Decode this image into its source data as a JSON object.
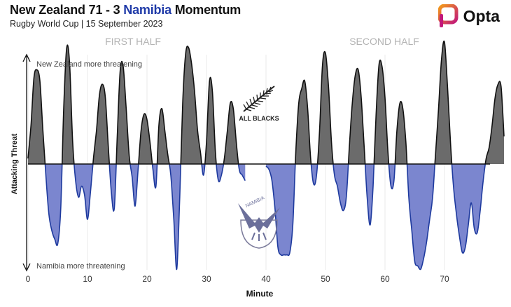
{
  "header": {
    "title_team1": "New Zealand 71 - 3",
    "title_team2": "Namibia",
    "title_suffix": "Momentum",
    "subtitle": "Rugby World Cup | 15 September 2023",
    "brand": "Opta"
  },
  "colors": {
    "new_zealand": "#6b6b6b",
    "namibia": "#7b86cf",
    "namibia_line": "#1e3a9e",
    "title_namibia": "#1f3aa8",
    "opta_orange": "#f29a1b",
    "opta_magenta": "#c2187a"
  },
  "icons": {
    "nz_logo": "all-blacks-fern-icon",
    "namibia_logo": "namibia-eagle-icon",
    "brand_logo": "opta-icon"
  },
  "chart_data": {
    "type": "area",
    "title": "New Zealand 71 - 3 Namibia Momentum",
    "subtitle": "Rugby World Cup | 15 September 2023",
    "xlabel": "Minute",
    "ylabel": "Attacking Threat",
    "top_annotation": "New Zealand more threatening",
    "bottom_annotation": "Namibia more threatening",
    "first_half_label": "FIRST HALF",
    "second_half_label": "SECOND HALF",
    "nz_badge_text": "ALL BLACKS",
    "namibia_badge_text": "NAMIBIA",
    "x_ticks": [
      0,
      10,
      20,
      30,
      40,
      50,
      60,
      70
    ],
    "xlim": [
      0,
      80
    ],
    "ylim": [
      -1,
      1
    ],
    "grid": true,
    "series": [
      {
        "name": "First Half",
        "x": [
          0,
          0.5,
          1,
          1.5,
          2,
          2.5,
          3,
          3.5,
          4,
          4.5,
          5,
          5.5,
          6,
          6.5,
          7,
          7.5,
          8,
          8.5,
          9,
          9.5,
          10,
          10.5,
          11,
          11.5,
          12,
          12.5,
          13,
          13.5,
          14,
          14.5,
          15,
          15.5,
          16,
          16.5,
          17,
          17.5,
          18,
          18.5,
          19,
          19.5,
          20,
          20.5,
          21,
          21.5,
          22,
          22.5,
          23,
          23.5,
          24,
          24.5,
          25,
          25.5,
          26,
          26.5,
          27,
          27.5,
          28,
          28.5,
          29,
          29.5,
          30,
          30.5,
          31,
          31.5,
          32,
          32.5,
          33,
          33.5,
          34,
          34.5,
          35,
          35.5,
          36,
          36.5
        ],
        "values": [
          0.05,
          0.35,
          0.78,
          0.85,
          0.75,
          0.3,
          -0.1,
          -0.45,
          -0.6,
          -0.68,
          -0.72,
          -0.4,
          0.5,
          1.05,
          0.9,
          0.2,
          -0.15,
          -0.3,
          -0.2,
          -0.28,
          -0.5,
          -0.25,
          0.05,
          0.3,
          0.62,
          0.72,
          0.6,
          0.15,
          -0.25,
          -0.4,
          0.25,
          0.85,
          0.88,
          0.5,
          0.08,
          -0.12,
          -0.38,
          -0.05,
          0.3,
          0.45,
          0.4,
          0.2,
          -0.05,
          -0.2,
          0.35,
          0.5,
          0.3,
          0.08,
          -0.1,
          -0.5,
          -0.95,
          -0.3,
          0.55,
          1.0,
          1.05,
          0.9,
          0.65,
          0.3,
          0.1,
          -0.1,
          0.2,
          0.75,
          0.65,
          0.1,
          -0.15,
          -0.1,
          0.05,
          0.3,
          0.55,
          0.5,
          0.2,
          -0.05,
          -0.1,
          -0.15
        ]
      },
      {
        "name": "Second Half",
        "x": [
          40,
          40.5,
          41,
          41.5,
          42,
          42.5,
          43,
          43.5,
          44,
          44.5,
          45,
          45.5,
          46,
          46.5,
          47,
          47.5,
          48,
          48.5,
          49,
          49.5,
          50,
          50.5,
          51,
          51.5,
          52,
          52.5,
          53,
          53.5,
          54,
          54.5,
          55,
          55.5,
          56,
          56.5,
          57,
          57.5,
          58,
          58.5,
          59,
          59.5,
          60,
          60.5,
          61,
          61.5,
          62,
          62.5,
          63,
          63.5,
          64,
          64.5,
          65,
          65.5,
          66,
          66.5,
          67,
          67.5,
          68,
          68.5,
          69,
          69.5,
          70,
          70.5,
          71,
          71.5,
          72,
          72.5,
          73,
          73.5,
          74,
          74.5,
          75,
          75.5,
          76,
          76.5,
          77,
          77.5,
          78,
          78.5,
          79,
          79.5,
          80
        ],
        "values": [
          -0.02,
          -0.05,
          -0.15,
          -0.4,
          -0.75,
          -0.82,
          -0.82,
          -0.82,
          -0.8,
          -0.55,
          0.1,
          0.55,
          0.68,
          0.75,
          0.5,
          0.05,
          -0.18,
          -0.1,
          0.3,
          0.9,
          1.0,
          0.7,
          0.2,
          -0.1,
          -0.2,
          -0.35,
          -0.42,
          -0.3,
          0.15,
          0.55,
          0.8,
          0.85,
          0.6,
          0.15,
          -0.3,
          -0.55,
          -0.2,
          0.45,
          0.9,
          0.88,
          0.6,
          0.1,
          -0.2,
          -0.15,
          0.3,
          0.55,
          0.5,
          0.2,
          -0.3,
          -0.6,
          -0.88,
          -0.92,
          -0.95,
          -0.85,
          -0.7,
          -0.5,
          -0.3,
          0.1,
          0.5,
          0.95,
          1.1,
          0.7,
          0.2,
          -0.2,
          -0.45,
          -0.65,
          -0.8,
          -0.75,
          -0.55,
          -0.35,
          -0.58,
          -0.62,
          -0.42,
          -0.15,
          0.05,
          0.15,
          0.35,
          0.6,
          0.72,
          0.7,
          0.25
        ]
      }
    ]
  }
}
